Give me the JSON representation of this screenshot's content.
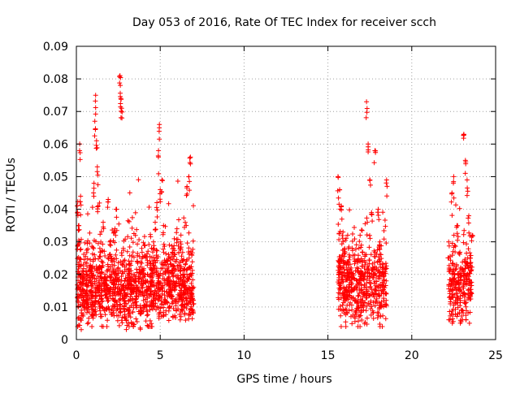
{
  "chart_data": {
    "type": "scatter",
    "title": "Day 053 of 2016, Rate Of TEC Index for receiver scch",
    "xlabel": "GPS time / hours",
    "ylabel": "ROTI / TECUs",
    "xlim": [
      0,
      25
    ],
    "ylim": [
      0,
      0.09
    ],
    "x_ticks": [
      0,
      5,
      10,
      15,
      20,
      25
    ],
    "x_tick_labels": [
      "0",
      "5",
      "10",
      "15",
      "20",
      "25"
    ],
    "y_ticks": [
      0,
      0.01,
      0.02,
      0.03,
      0.04,
      0.05,
      0.06,
      0.07,
      0.08,
      0.09
    ],
    "y_tick_labels": [
      "0",
      "0.01",
      "0.02",
      "0.03",
      "0.04",
      "0.05",
      "0.06",
      "0.07",
      "0.08",
      "0.09"
    ],
    "grid": true,
    "marker": "plus",
    "marker_color": "#ff0000",
    "clusters": [
      {
        "x_range": [
          0.0,
          7.0
        ],
        "y_range": [
          0.004,
          0.081
        ],
        "typical_y": [
          0.008,
          0.025
        ]
      },
      {
        "x_range": [
          15.6,
          18.5
        ],
        "y_range": [
          0.004,
          0.073
        ],
        "typical_y": [
          0.008,
          0.025
        ]
      },
      {
        "x_range": [
          22.2,
          23.6
        ],
        "y_range": [
          0.005,
          0.065
        ],
        "typical_y": [
          0.008,
          0.025
        ]
      }
    ],
    "series": [
      {
        "values": [
          [
            0.0,
            0.012
          ],
          [
            0.05,
            0.041
          ],
          [
            0.1,
            0.016
          ],
          [
            0.15,
            0.035
          ],
          [
            0.2,
            0.06
          ],
          [
            0.25,
            0.044
          ],
          [
            0.3,
            0.009
          ],
          [
            0.35,
            0.02
          ],
          [
            0.4,
            0.013
          ],
          [
            0.5,
            0.011
          ],
          [
            0.6,
            0.018
          ],
          [
            0.7,
            0.01
          ],
          [
            0.8,
            0.022
          ],
          [
            0.9,
            0.015
          ],
          [
            1.0,
            0.009
          ],
          [
            1.05,
            0.048
          ],
          [
            1.1,
            0.067
          ],
          [
            1.15,
            0.075
          ],
          [
            1.2,
            0.061
          ],
          [
            1.25,
            0.053
          ],
          [
            1.3,
            0.041
          ],
          [
            1.4,
            0.028
          ],
          [
            1.5,
            0.024
          ],
          [
            1.6,
            0.036
          ],
          [
            1.7,
            0.02
          ],
          [
            1.8,
            0.018
          ],
          [
            1.9,
            0.043
          ],
          [
            2.0,
            0.03
          ],
          [
            2.1,
            0.025
          ],
          [
            2.2,
            0.016
          ],
          [
            2.3,
            0.034
          ],
          [
            2.4,
            0.04
          ],
          [
            2.5,
            0.022
          ],
          [
            2.6,
            0.081
          ],
          [
            2.62,
            0.078
          ],
          [
            2.65,
            0.074
          ],
          [
            2.7,
            0.071
          ],
          [
            2.8,
            0.028
          ],
          [
            2.9,
            0.012
          ],
          [
            3.0,
            0.006
          ],
          [
            3.1,
            0.009
          ],
          [
            3.2,
            0.017
          ],
          [
            3.4,
            0.011
          ],
          [
            3.6,
            0.014
          ],
          [
            3.8,
            0.008
          ],
          [
            4.0,
            0.012
          ],
          [
            4.2,
            0.016
          ],
          [
            4.4,
            0.022
          ],
          [
            4.6,
            0.03
          ],
          [
            4.7,
            0.036
          ],
          [
            4.8,
            0.042
          ],
          [
            4.9,
            0.058
          ],
          [
            4.95,
            0.066
          ],
          [
            5.0,
            0.046
          ],
          [
            5.1,
            0.049
          ],
          [
            5.2,
            0.035
          ],
          [
            5.4,
            0.024
          ],
          [
            5.6,
            0.018
          ],
          [
            5.8,
            0.028
          ],
          [
            6.0,
            0.034
          ],
          [
            6.2,
            0.03
          ],
          [
            6.4,
            0.019
          ],
          [
            6.6,
            0.047
          ],
          [
            6.7,
            0.05
          ],
          [
            6.8,
            0.056
          ],
          [
            6.9,
            0.014
          ],
          [
            7.0,
            0.011
          ],
          [
            15.6,
            0.05
          ],
          [
            15.7,
            0.046
          ],
          [
            15.8,
            0.041
          ],
          [
            15.9,
            0.033
          ],
          [
            16.0,
            0.028
          ],
          [
            16.2,
            0.022
          ],
          [
            16.4,
            0.016
          ],
          [
            16.6,
            0.012
          ],
          [
            16.8,
            0.01
          ],
          [
            17.0,
            0.02
          ],
          [
            17.2,
            0.026
          ],
          [
            17.3,
            0.073
          ],
          [
            17.4,
            0.06
          ],
          [
            17.5,
            0.049
          ],
          [
            17.6,
            0.039
          ],
          [
            17.8,
            0.058
          ],
          [
            18.0,
            0.04
          ],
          [
            18.1,
            0.03
          ],
          [
            18.3,
            0.02
          ],
          [
            18.5,
            0.049
          ],
          [
            22.2,
            0.03
          ],
          [
            22.4,
            0.045
          ],
          [
            22.5,
            0.05
          ],
          [
            22.7,
            0.035
          ],
          [
            22.9,
            0.022
          ],
          [
            23.1,
            0.063
          ],
          [
            23.2,
            0.055
          ],
          [
            23.3,
            0.049
          ],
          [
            23.4,
            0.038
          ],
          [
            23.5,
            0.025
          ],
          [
            23.6,
            0.032
          ]
        ]
      }
    ]
  }
}
